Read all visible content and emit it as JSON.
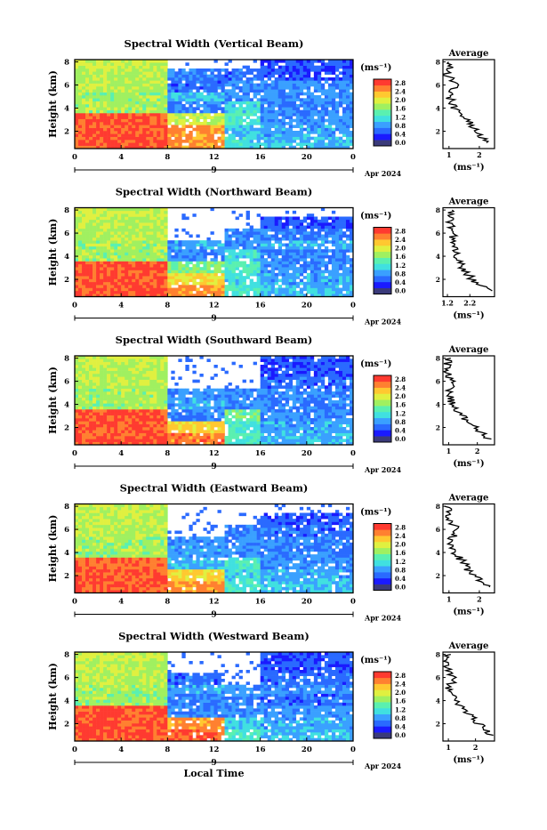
{
  "colors": {
    "palette": [
      "#3a3a7a",
      "#1a1aff",
      "#2a6aff",
      "#3aa0ff",
      "#40e0e0",
      "#5af0b0",
      "#a0f060",
      "#e0f040",
      "#ffc830",
      "#ff8030",
      "#ff3a30"
    ],
    "line": "#000000"
  },
  "common": {
    "ylabel": "Height (km)",
    "y_ticks": [
      "8",
      "6",
      "4",
      "2"
    ],
    "x_ticks": [
      "0",
      "4",
      "8",
      "12",
      "16",
      "20",
      "0"
    ],
    "date_day": "9",
    "date_label": "Apr 2024",
    "cbar_unit": "(ms⁻¹)",
    "avg_title": "Average",
    "avg_unit": "(ms⁻¹)",
    "xlabel": "Local Time"
  },
  "panels": [
    {
      "title": "Spectral Width (Vertical Beam)",
      "cbar_ticks": [
        "2.8",
        "2.4",
        "2.0",
        "1.6",
        "1.2",
        "0.8",
        "0.4",
        "0.0"
      ],
      "avg_ticks": [
        "1",
        "2"
      ]
    },
    {
      "title": "Spectral Width (Northward Beam)",
      "cbar_ticks": [
        "2.8",
        "2.4",
        "2.0",
        "1.6",
        "1.2",
        "0.8",
        "0.4",
        "0.0"
      ],
      "avg_ticks": [
        "1.2",
        "2.2"
      ]
    },
    {
      "title": "Spectral Width (Southward Beam)",
      "cbar_ticks": [
        "2.8",
        "2.4",
        "2.0",
        "1.6",
        "1.2",
        "0.8",
        "0.4",
        "0.0"
      ],
      "avg_ticks": [
        "1",
        "2"
      ]
    },
    {
      "title": "Spectral Width (Eastward Beam)",
      "cbar_ticks": [
        "2.8",
        "2.4",
        "2.0",
        "1.6",
        "1.2",
        "0.8",
        "0.4",
        "0.0"
      ],
      "avg_ticks": [
        "1",
        "2"
      ]
    },
    {
      "title": "Spectral Width (Westward Beam)",
      "cbar_ticks": [
        "2.8",
        "2.4",
        "2.0",
        "1.6",
        "1.2",
        "0.8",
        "0.4",
        "0.0"
      ],
      "avg_ticks": [
        "1",
        "2"
      ]
    }
  ],
  "chart_data": {
    "type": "heatmap",
    "x_range_hours": [
      0,
      24
    ],
    "y_range_km": [
      0.5,
      8.2
    ],
    "color_range": [
      0.0,
      3.0
    ],
    "grid": false,
    "time_blocks_hours": [
      0,
      8,
      13,
      16,
      24
    ],
    "height_levels_km": [
      1.0,
      2.0,
      3.0,
      4.0,
      5.0,
      6.0,
      7.0,
      8.0
    ],
    "series": [
      {
        "matrix": [
          [
            2.9,
            2.6,
            1.2,
            1.0
          ],
          [
            2.9,
            2.6,
            1.0,
            0.9
          ],
          [
            2.9,
            2.0,
            1.4,
            0.8
          ],
          [
            1.8,
            0.7,
            1.2,
            0.7
          ],
          [
            1.8,
            1.0,
            0.7,
            0.8
          ],
          [
            1.9,
            0.6,
            0.8,
            0.8
          ],
          [
            1.9,
            0.7,
            0.6,
            0.5
          ],
          [
            2.0,
            null,
            null,
            0.5
          ]
        ],
        "avg": {
          "values": [
            2.3,
            1.9,
            1.6,
            1.2,
            1.0,
            1.2,
            0.9,
            1.1
          ],
          "xlim": [
            0.8,
            2.5
          ]
        }
      },
      {
        "matrix": [
          [
            2.9,
            2.6,
            1.3,
            1.0
          ],
          [
            2.9,
            2.2,
            1.2,
            0.9
          ],
          [
            2.9,
            1.6,
            1.4,
            0.8
          ],
          [
            1.8,
            0.8,
            1.2,
            0.7
          ],
          [
            1.8,
            0.9,
            0.8,
            0.9
          ],
          [
            1.9,
            null,
            0.7,
            0.7
          ],
          [
            1.9,
            null,
            null,
            0.5
          ],
          [
            2.0,
            null,
            null,
            null
          ]
        ],
        "avg": {
          "values": [
            3.0,
            2.3,
            1.9,
            1.6,
            1.4,
            1.5,
            1.3,
            1.4
          ],
          "xlim": [
            1.0,
            3.3
          ]
        }
      },
      {
        "matrix": [
          [
            2.9,
            2.7,
            1.4,
            1.0
          ],
          [
            2.9,
            2.3,
            1.3,
            0.9
          ],
          [
            2.9,
            0.7,
            1.5,
            0.8
          ],
          [
            1.8,
            0.9,
            0.8,
            0.7
          ],
          [
            1.8,
            0.8,
            0.7,
            0.8
          ],
          [
            1.9,
            null,
            null,
            0.6
          ],
          [
            1.9,
            null,
            null,
            0.5
          ],
          [
            2.0,
            null,
            null,
            0.5
          ]
        ],
        "avg": {
          "values": [
            2.4,
            1.9,
            1.5,
            1.1,
            1.0,
            1.1,
            0.9,
            1.0
          ],
          "xlim": [
            0.8,
            2.6
          ]
        }
      },
      {
        "matrix": [
          [
            2.9,
            2.6,
            1.3,
            1.0
          ],
          [
            2.9,
            2.3,
            1.2,
            0.9
          ],
          [
            2.8,
            1.0,
            1.3,
            0.8
          ],
          [
            1.8,
            0.9,
            0.8,
            0.7
          ],
          [
            1.8,
            0.8,
            0.8,
            0.8
          ],
          [
            1.9,
            null,
            0.7,
            0.6
          ],
          [
            1.9,
            null,
            null,
            0.5
          ],
          [
            2.0,
            null,
            null,
            null
          ]
        ],
        "avg": {
          "values": [
            2.3,
            1.8,
            1.5,
            1.2,
            1.0,
            1.3,
            0.9,
            1.0
          ],
          "xlim": [
            0.8,
            2.5
          ]
        }
      },
      {
        "matrix": [
          [
            2.9,
            2.8,
            1.3,
            1.0
          ],
          [
            2.9,
            2.6,
            1.1,
            0.9
          ],
          [
            2.9,
            0.7,
            0.8,
            0.8
          ],
          [
            1.8,
            0.7,
            0.7,
            0.6
          ],
          [
            1.8,
            0.9,
            0.8,
            0.8
          ],
          [
            1.9,
            0.6,
            null,
            0.6
          ],
          [
            1.9,
            null,
            null,
            0.5
          ],
          [
            2.0,
            null,
            null,
            0.5
          ]
        ],
        "avg": {
          "values": [
            2.6,
            2.1,
            1.7,
            1.3,
            1.0,
            1.2,
            0.9,
            1.0
          ],
          "xlim": [
            0.8,
            2.7
          ]
        }
      }
    ]
  }
}
